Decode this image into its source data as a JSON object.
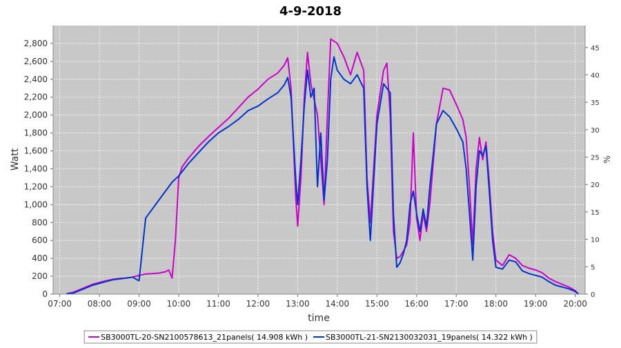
{
  "chart_data": {
    "type": "line",
    "title": "4-9-2018",
    "xlabel": "time",
    "ylabel": "Watt",
    "y2label": "%",
    "xlim": [
      "06:50",
      "20:15"
    ],
    "ylim": [
      0,
      3000
    ],
    "y2lim": [
      0,
      49
    ],
    "x_ticks": [
      "07:00",
      "08:00",
      "09:00",
      "10:00",
      "11:00",
      "12:00",
      "13:00",
      "14:00",
      "15:00",
      "16:00",
      "17:00",
      "18:00",
      "19:00",
      "20:00"
    ],
    "y_ticks": [
      "0",
      "200",
      "400",
      "600",
      "800",
      "1,000",
      "1,200",
      "1,400",
      "1,600",
      "1,800",
      "2,000",
      "2,200",
      "2,400",
      "2,600",
      "2,800"
    ],
    "y2_ticks": [
      "0",
      "5",
      "10",
      "15",
      "20",
      "25",
      "30",
      "35",
      "40",
      "45"
    ],
    "grid": true,
    "legend_position": "bottom",
    "colors": {
      "plot_bg": "#c8c8c8",
      "grid": "#ffffff"
    },
    "series": [
      {
        "name": "SB3000TL-20-SN2100578613_21panels( 14.908 kWh )",
        "color": "#cc00cc",
        "points": [
          [
            "07:10",
            5
          ],
          [
            "07:20",
            20
          ],
          [
            "07:30",
            50
          ],
          [
            "07:40",
            80
          ],
          [
            "07:50",
            110
          ],
          [
            "08:00",
            130
          ],
          [
            "08:10",
            150
          ],
          [
            "08:20",
            165
          ],
          [
            "08:30",
            175
          ],
          [
            "08:40",
            180
          ],
          [
            "08:50",
            190
          ],
          [
            "09:00",
            210
          ],
          [
            "09:10",
            225
          ],
          [
            "09:20",
            230
          ],
          [
            "09:30",
            235
          ],
          [
            "09:40",
            250
          ],
          [
            "09:45",
            270
          ],
          [
            "09:50",
            180
          ],
          [
            "09:55",
            600
          ],
          [
            "10:00",
            1300
          ],
          [
            "10:05",
            1420
          ],
          [
            "10:15",
            1520
          ],
          [
            "10:30",
            1650
          ],
          [
            "10:45",
            1760
          ],
          [
            "11:00",
            1860
          ],
          [
            "11:15",
            1960
          ],
          [
            "11:30",
            2080
          ],
          [
            "11:45",
            2200
          ],
          [
            "12:00",
            2290
          ],
          [
            "12:15",
            2400
          ],
          [
            "12:30",
            2470
          ],
          [
            "12:40",
            2560
          ],
          [
            "12:45",
            2640
          ],
          [
            "12:50",
            2300
          ],
          [
            "12:57",
            1100
          ],
          [
            "13:00",
            760
          ],
          [
            "13:05",
            1300
          ],
          [
            "13:10",
            2200
          ],
          [
            "13:15",
            2700
          ],
          [
            "13:20",
            2350
          ],
          [
            "13:30",
            2000
          ],
          [
            "13:40",
            1000
          ],
          [
            "13:45",
            2000
          ],
          [
            "13:50",
            2850
          ],
          [
            "14:00",
            2800
          ],
          [
            "14:10",
            2650
          ],
          [
            "14:20",
            2450
          ],
          [
            "14:30",
            2700
          ],
          [
            "14:40",
            2500
          ],
          [
            "14:45",
            1300
          ],
          [
            "14:50",
            800
          ],
          [
            "15:00",
            2000
          ],
          [
            "15:10",
            2500
          ],
          [
            "15:15",
            2580
          ],
          [
            "15:20",
            2000
          ],
          [
            "15:25",
            700
          ],
          [
            "15:30",
            400
          ],
          [
            "15:35",
            420
          ],
          [
            "15:40",
            480
          ],
          [
            "15:45",
            550
          ],
          [
            "15:50",
            800
          ],
          [
            "15:55",
            1800
          ],
          [
            "16:00",
            850
          ],
          [
            "16:05",
            600
          ],
          [
            "16:10",
            900
          ],
          [
            "16:15",
            700
          ],
          [
            "16:20",
            1000
          ],
          [
            "16:30",
            1900
          ],
          [
            "16:40",
            2300
          ],
          [
            "16:50",
            2280
          ],
          [
            "17:00",
            2120
          ],
          [
            "17:10",
            1950
          ],
          [
            "17:15",
            1750
          ],
          [
            "17:20",
            1200
          ],
          [
            "17:25",
            550
          ],
          [
            "17:30",
            1400
          ],
          [
            "17:35",
            1750
          ],
          [
            "17:40",
            1500
          ],
          [
            "17:45",
            1700
          ],
          [
            "17:50",
            1250
          ],
          [
            "17:55",
            700
          ],
          [
            "18:00",
            380
          ],
          [
            "18:10",
            320
          ],
          [
            "18:20",
            440
          ],
          [
            "18:30",
            400
          ],
          [
            "18:40",
            320
          ],
          [
            "18:50",
            290
          ],
          [
            "19:00",
            270
          ],
          [
            "19:10",
            240
          ],
          [
            "19:20",
            180
          ],
          [
            "19:30",
            140
          ],
          [
            "19:40",
            110
          ],
          [
            "19:50",
            80
          ],
          [
            "20:00",
            40
          ],
          [
            "20:05",
            0
          ]
        ]
      },
      {
        "name": "SB3000TL-21-SN2130032031_19panels( 14.322 kWh )",
        "color": "#0033cc",
        "points": [
          [
            "07:10",
            5
          ],
          [
            "07:20",
            10
          ],
          [
            "07:30",
            40
          ],
          [
            "07:40",
            70
          ],
          [
            "07:50",
            100
          ],
          [
            "08:00",
            120
          ],
          [
            "08:10",
            140
          ],
          [
            "08:20",
            160
          ],
          [
            "08:30",
            170
          ],
          [
            "08:40",
            180
          ],
          [
            "08:50",
            190
          ],
          [
            "09:00",
            150
          ],
          [
            "09:05",
            500
          ],
          [
            "09:10",
            850
          ],
          [
            "09:20",
            950
          ],
          [
            "09:30",
            1050
          ],
          [
            "09:40",
            1150
          ],
          [
            "09:50",
            1250
          ],
          [
            "10:00",
            1320
          ],
          [
            "10:15",
            1460
          ],
          [
            "10:30",
            1580
          ],
          [
            "10:45",
            1700
          ],
          [
            "11:00",
            1800
          ],
          [
            "11:15",
            1870
          ],
          [
            "11:30",
            1950
          ],
          [
            "11:45",
            2050
          ],
          [
            "12:00",
            2100
          ],
          [
            "12:15",
            2180
          ],
          [
            "12:30",
            2250
          ],
          [
            "12:40",
            2340
          ],
          [
            "12:45",
            2420
          ],
          [
            "12:50",
            2200
          ],
          [
            "12:57",
            1300
          ],
          [
            "13:00",
            1000
          ],
          [
            "13:05",
            1500
          ],
          [
            "13:10",
            2100
          ],
          [
            "13:15",
            2500
          ],
          [
            "13:20",
            2200
          ],
          [
            "13:25",
            2300
          ],
          [
            "13:30",
            1200
          ],
          [
            "13:35",
            1800
          ],
          [
            "13:40",
            1050
          ],
          [
            "13:45",
            1500
          ],
          [
            "13:50",
            2400
          ],
          [
            "13:55",
            2650
          ],
          [
            "14:00",
            2500
          ],
          [
            "14:10",
            2400
          ],
          [
            "14:20",
            2350
          ],
          [
            "14:30",
            2450
          ],
          [
            "14:40",
            2300
          ],
          [
            "14:45",
            1200
          ],
          [
            "14:50",
            600
          ],
          [
            "15:00",
            1900
          ],
          [
            "15:10",
            2350
          ],
          [
            "15:20",
            2250
          ],
          [
            "15:25",
            900
          ],
          [
            "15:30",
            300
          ],
          [
            "15:35",
            350
          ],
          [
            "15:40",
            450
          ],
          [
            "15:45",
            600
          ],
          [
            "15:50",
            1000
          ],
          [
            "15:55",
            1150
          ],
          [
            "16:00",
            900
          ],
          [
            "16:05",
            700
          ],
          [
            "16:10",
            950
          ],
          [
            "16:15",
            750
          ],
          [
            "16:20",
            1200
          ],
          [
            "16:30",
            1900
          ],
          [
            "16:40",
            2050
          ],
          [
            "16:50",
            1980
          ],
          [
            "17:00",
            1850
          ],
          [
            "17:10",
            1700
          ],
          [
            "17:15",
            1400
          ],
          [
            "17:20",
            900
          ],
          [
            "17:25",
            380
          ],
          [
            "17:30",
            1200
          ],
          [
            "17:35",
            1600
          ],
          [
            "17:40",
            1550
          ],
          [
            "17:45",
            1650
          ],
          [
            "17:50",
            1150
          ],
          [
            "17:55",
            600
          ],
          [
            "18:00",
            300
          ],
          [
            "18:10",
            280
          ],
          [
            "18:20",
            380
          ],
          [
            "18:30",
            360
          ],
          [
            "18:40",
            260
          ],
          [
            "18:50",
            230
          ],
          [
            "19:00",
            210
          ],
          [
            "19:10",
            190
          ],
          [
            "19:20",
            140
          ],
          [
            "19:30",
            100
          ],
          [
            "19:40",
            80
          ],
          [
            "19:50",
            60
          ],
          [
            "20:00",
            30
          ],
          [
            "20:05",
            0
          ]
        ]
      }
    ]
  }
}
